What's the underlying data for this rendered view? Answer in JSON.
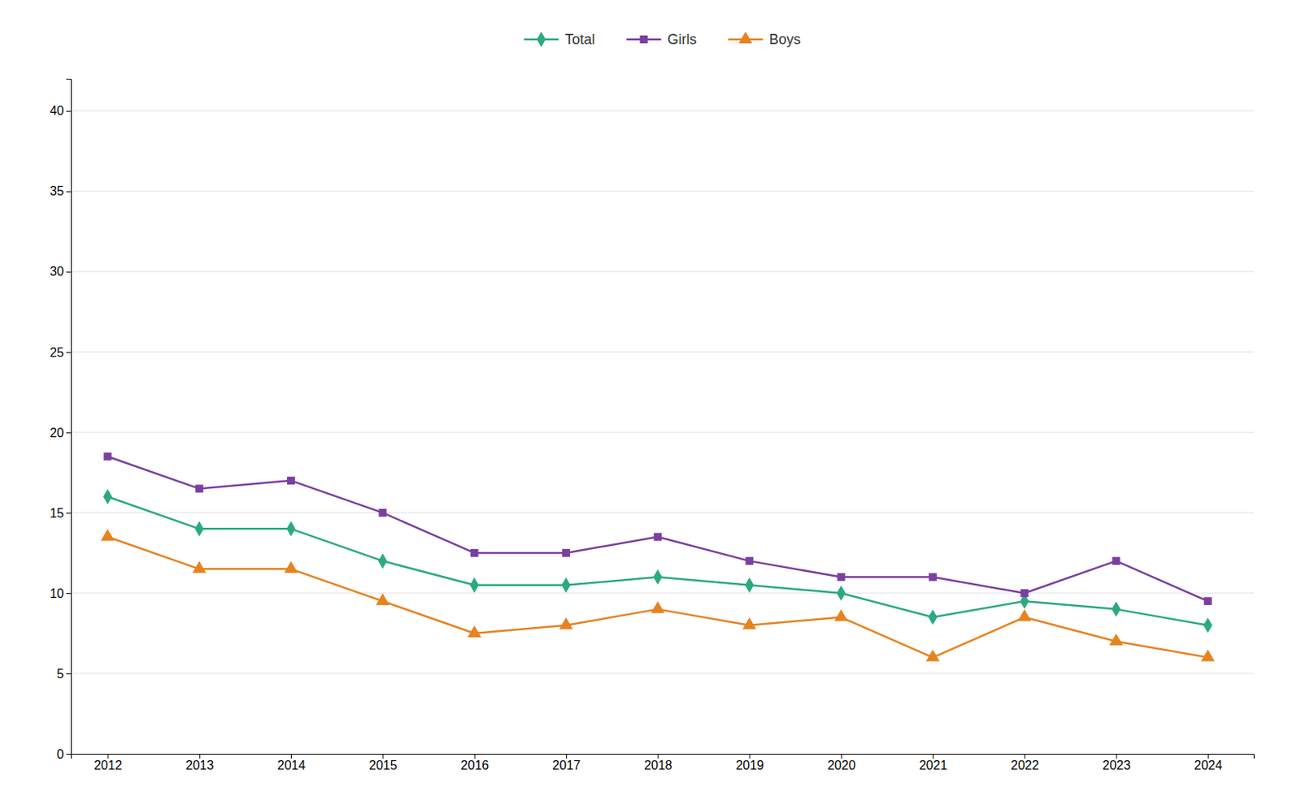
{
  "chart_data": {
    "type": "line",
    "x": [
      2012,
      2013,
      2014,
      2015,
      2016,
      2017,
      2018,
      2019,
      2020,
      2021,
      2022,
      2023,
      2024
    ],
    "series": [
      {
        "name": "Total",
        "color": "#2AAA80",
        "marker": "diamond",
        "values": [
          16,
          14,
          14,
          12,
          10.5,
          10.5,
          11,
          10.5,
          10,
          8.5,
          9.5,
          9,
          8
        ]
      },
      {
        "name": "Girls",
        "color": "#7B3FA0",
        "marker": "square",
        "values": [
          18.5,
          16.5,
          17,
          15,
          12.5,
          12.5,
          13.5,
          12,
          11,
          11,
          10,
          12,
          9.5
        ]
      },
      {
        "name": "Boys",
        "color": "#E8821E",
        "marker": "triangle",
        "values": [
          13.5,
          11.5,
          11.5,
          9.5,
          7.5,
          8,
          9,
          8,
          8.5,
          6,
          8.5,
          7,
          6
        ]
      }
    ],
    "xlim": [
      2011.6,
      2024.5
    ],
    "xticks": [
      2012,
      2013,
      2014,
      2015,
      2016,
      2017,
      2018,
      2019,
      2020,
      2021,
      2022,
      2023,
      2024
    ],
    "ylim": [
      0,
      42
    ],
    "yticks": [
      0,
      5,
      10,
      15,
      20,
      25,
      30,
      35,
      40
    ],
    "grid": "y",
    "legend": "top"
  }
}
